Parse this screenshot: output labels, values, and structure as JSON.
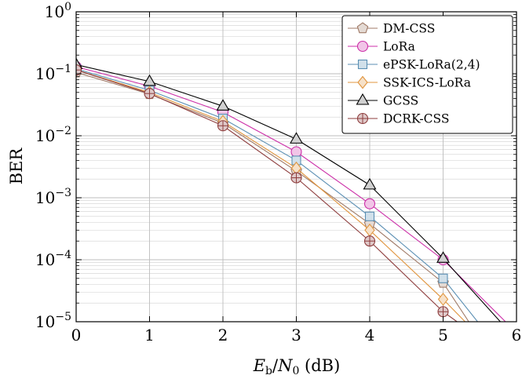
{
  "chart_data": {
    "type": "line",
    "title": "",
    "xlabel": "E_b/N_0 (dB)",
    "xlabel_parts": {
      "e": "E",
      "e_sub": "b",
      "slash": "/",
      "n": "N",
      "n_sub": "0",
      "unit": " (dB)"
    },
    "ylabel": "BER",
    "xlim": [
      0,
      6
    ],
    "ylim": [
      1e-05,
      1
    ],
    "yscale": "log",
    "grid": true,
    "legend_position": "top-right",
    "x_ticks": [
      "0",
      "1",
      "2",
      "3",
      "4",
      "5",
      "6"
    ],
    "y_ticks": [
      {
        "base": "10",
        "exp": "0"
      },
      {
        "base": "10",
        "exp": "−1"
      },
      {
        "base": "10",
        "exp": "−2"
      },
      {
        "base": "10",
        "exp": "−3"
      },
      {
        "base": "10",
        "exp": "−4"
      },
      {
        "base": "10",
        "exp": "−5"
      }
    ],
    "series": [
      {
        "name": "DM-CSS",
        "color": "#a07a67",
        "marker": "pentagon",
        "x": [
          0,
          1,
          2,
          3,
          4,
          5,
          5.35
        ],
        "y": [
          0.105,
          0.047,
          0.016,
          0.0027,
          0.00038,
          4.25e-05,
          1e-05
        ]
      },
      {
        "name": "LoRa",
        "color": "#cc2fa8",
        "marker": "circle",
        "x": [
          0,
          1,
          2,
          3,
          4,
          5,
          5.85
        ],
        "y": [
          0.13,
          0.063,
          0.024,
          0.0055,
          0.0008,
          0.0001,
          1e-05
        ]
      },
      {
        "name": "ePSK-LoRa(2,4)",
        "color": "#5b8fb3",
        "marker": "square",
        "x": [
          0,
          1,
          2,
          3,
          4,
          5,
          5.47
        ],
        "y": [
          0.12,
          0.054,
          0.019,
          0.004,
          0.0005,
          5e-05,
          1e-05
        ]
      },
      {
        "name": "SSK-ICS-LoRa",
        "color": "#e0953e",
        "marker": "diamond",
        "x": [
          0,
          1,
          2,
          3,
          4,
          5,
          5.3
        ],
        "y": [
          0.115,
          0.05,
          0.017,
          0.003,
          0.0003,
          2.3e-05,
          1e-05
        ]
      },
      {
        "name": "GCSS",
        "color": "#000000",
        "marker": "triangle",
        "x": [
          0,
          1,
          2,
          3,
          4,
          5,
          5.78
        ],
        "y": [
          0.14,
          0.075,
          0.03,
          0.0088,
          0.0016,
          0.000105,
          1e-05
        ]
      },
      {
        "name": "DCRK-CSS",
        "color": "#8e3d3d",
        "marker": "circle-plus",
        "x": [
          0,
          1,
          2,
          3,
          4,
          5,
          5.19
        ],
        "y": [
          0.115,
          0.048,
          0.0145,
          0.0021,
          0.0002,
          1.45e-05,
          1e-05
        ]
      }
    ]
  }
}
